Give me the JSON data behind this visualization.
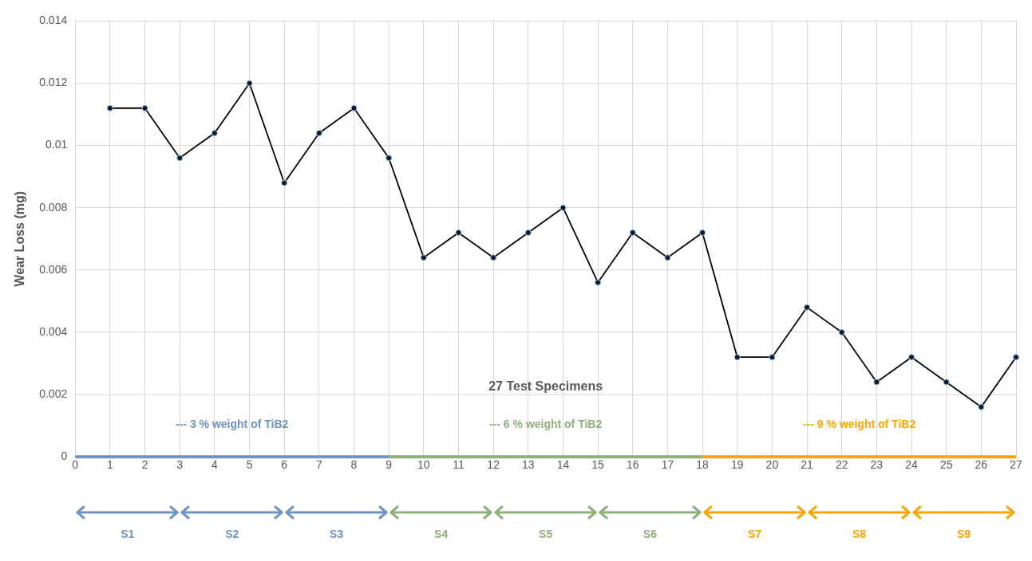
{
  "chart_data": {
    "type": "line",
    "xlabel": "27 Test Specimens",
    "ylabel": "Wear Loss (mg)",
    "x": [
      1,
      2,
      3,
      4,
      5,
      6,
      7,
      8,
      9,
      10,
      11,
      12,
      13,
      14,
      15,
      16,
      17,
      18,
      19,
      20,
      21,
      22,
      23,
      24,
      25,
      26,
      27
    ],
    "series": [
      {
        "color": "#000000",
        "values": [
          0.0112,
          0.0112,
          0.0096,
          0.0104,
          0.012,
          0.0088,
          0.0104,
          0.0112,
          0.0096,
          0.0064,
          0.0072,
          0.0064,
          0.0072,
          0.008,
          0.0056,
          0.0072,
          0.0064,
          0.0072,
          0.0032,
          0.0032,
          0.0048,
          0.004,
          0.0024,
          0.0032,
          0.0024,
          0.0016,
          0.0032
        ]
      },
      {
        "name": "--- 3 % weight of TiB2",
        "color": "#6f93c3",
        "x": [
          0,
          9
        ],
        "values": [
          0,
          0
        ],
        "marker": "none"
      },
      {
        "name": "--- 6 % weight of TiB2",
        "color": "#8fb07a",
        "x": [
          9,
          18
        ],
        "values": [
          0,
          0
        ],
        "marker": "none"
      },
      {
        "name": "--- 9 % weight of TiB2",
        "color": "#ffa500",
        "x": [
          18,
          27
        ],
        "values": [
          0,
          0
        ],
        "marker": "none"
      }
    ],
    "xlim": [
      0,
      27
    ],
    "xticks": [
      0,
      1,
      2,
      3,
      4,
      5,
      6,
      7,
      8,
      9,
      10,
      11,
      12,
      13,
      14,
      15,
      16,
      17,
      18,
      19,
      20,
      21,
      22,
      23,
      24,
      25,
      26,
      27
    ],
    "ylim": [
      0,
      0.014
    ],
    "yticks": [
      0,
      0.002,
      0.004,
      0.006,
      0.008,
      0.01,
      0.012,
      0.014
    ],
    "grid": true,
    "legend": false,
    "marker": "circle",
    "line_style": "solid",
    "annotations": [
      "S1",
      "S2",
      "S3",
      "S4",
      "S5",
      "S6",
      "S7",
      "S8",
      "S9"
    ]
  }
}
